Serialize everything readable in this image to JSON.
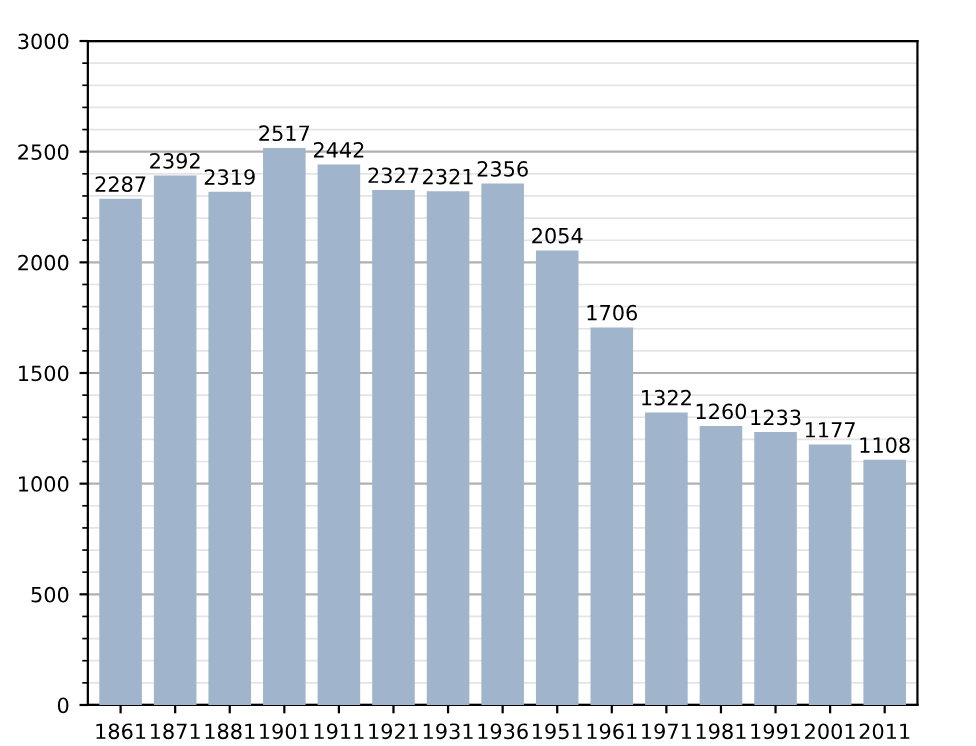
{
  "chart_data": {
    "type": "bar",
    "categories": [
      "1861",
      "1871",
      "1881",
      "1901",
      "1911",
      "1921",
      "1931",
      "1936",
      "1951",
      "1961",
      "1971",
      "1981",
      "1991",
      "2001",
      "2011"
    ],
    "values": [
      2287,
      2392,
      2319,
      2517,
      2442,
      2327,
      2321,
      2356,
      2054,
      1706,
      1322,
      1260,
      1233,
      1177,
      1108
    ],
    "color": "#a0b4cc",
    "ylim": [
      0,
      3000
    ],
    "yticks": [
      0,
      500,
      1000,
      1500,
      2000,
      2500,
      3000
    ],
    "grid": "y",
    "data_labels": true
  }
}
